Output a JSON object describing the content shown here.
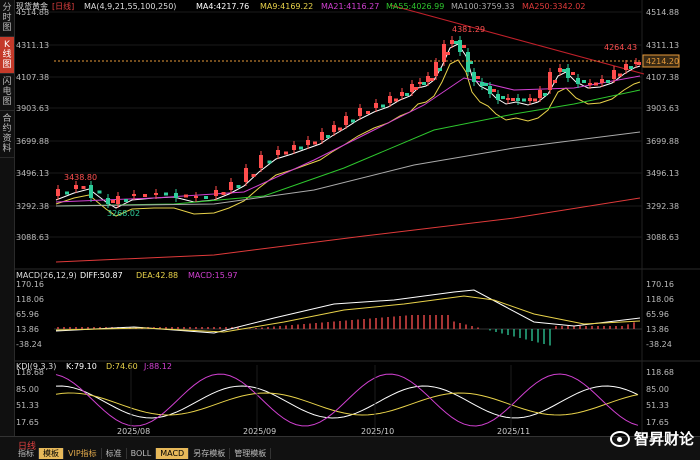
{
  "sidebar": {
    "tabs": [
      {
        "label": "分时图",
        "active": false
      },
      {
        "label": "K线图",
        "active": true
      },
      {
        "label": "闪电图",
        "active": false
      },
      {
        "label": "合约资料",
        "active": false
      }
    ]
  },
  "header": {
    "symbol": "现货黄金",
    "period_tag": "[日线]",
    "ma_params": "MA(4,9,21,55,100,250)",
    "ma4": "MA4:4217.76",
    "ma9": "MA9:4169.22",
    "ma21": "MA21:4116.27",
    "ma55": "MA55:4026.99",
    "ma100": "MA100:3759.33",
    "ma250": "MA250:3342.02"
  },
  "colors": {
    "up": "#ff4d4d",
    "down": "#2ecc9a",
    "ma4": "#ffffff",
    "ma9": "#e8d24a",
    "ma21": "#d040d0",
    "ma55": "#2ec72e",
    "ma100": "#aaaaaa",
    "ma250": "#e03a3a",
    "trend": "#c0202a",
    "current": "#e79a3a"
  },
  "price_axis": {
    "ticks": [
      "4514.88",
      "4311.13",
      "4107.38",
      "3903.63",
      "3699.88",
      "3496.13",
      "3292.38",
      "3088.63"
    ],
    "current_label": "4214.20"
  },
  "annotations": {
    "high1": "4381.29",
    "high2": "4264.43",
    "high_aug": "3438.80",
    "low_aug": "3268.02"
  },
  "macd": {
    "header_params": "MACD(26,12,9)",
    "diff": "DIFF:50.87",
    "dea": "DEA:42.88",
    "macd": "MACD:15.97",
    "ticks": [
      "170.16",
      "118.06",
      "65.96",
      "13.86",
      "-38.24"
    ]
  },
  "kdj": {
    "header_params": "KDJ(9,3,3)",
    "k": "K:79.10",
    "d": "D:74.60",
    "j": "J:88.12",
    "ticks": [
      "118.68",
      "85.00",
      "51.33",
      "17.65"
    ]
  },
  "time_axis": [
    "2025/08",
    "2025/09",
    "2025/10",
    "2025/11"
  ],
  "bottom": {
    "period": "日线",
    "tabs": [
      {
        "label": "指标",
        "active": false
      },
      {
        "label": "模板",
        "active": true
      },
      {
        "label": "VIP指标",
        "active": false,
        "vip": true
      },
      {
        "label": "标准",
        "active": false
      },
      {
        "label": "BOLL",
        "active": false
      },
      {
        "label": "MACD",
        "active": true
      },
      {
        "label": "另存模板",
        "active": false
      },
      {
        "label": "管理模板",
        "active": false
      }
    ]
  },
  "watermark": {
    "text": "智昇财论",
    "icon": "weibo-icon"
  }
}
